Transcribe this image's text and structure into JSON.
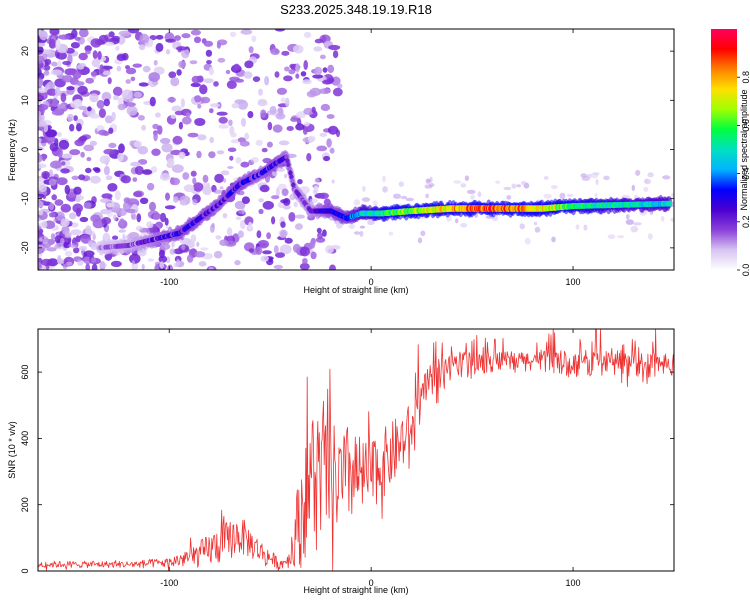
{
  "figure": {
    "title": "S233.2025.348.19.19.R18"
  },
  "chart_data": [
    {
      "type": "heatmap",
      "title": "S233.2025.348.19.19.R18",
      "xlabel": "Height of straight line (km)",
      "ylabel": "Frequency (Hz)",
      "xlim": [
        -165,
        150
      ],
      "ylim": [
        -24.5,
        24.5
      ],
      "x_ticks": [
        -100,
        0,
        100
      ],
      "x_tick_labels": [
        "-100",
        "0",
        "100"
      ],
      "y_ticks": [
        -20,
        -10,
        0,
        10,
        20
      ],
      "y_tick_labels": [
        "-20",
        "-10",
        "0",
        "10",
        "20"
      ],
      "colorbar": {
        "label": "Normalized spectral amplitude",
        "range": [
          0,
          1
        ],
        "ticks": [
          0.0,
          0.2,
          0.4,
          0.6,
          0.8
        ],
        "tick_labels": [
          "0.0",
          "0.2",
          "0.4",
          "0.6",
          "0.8"
        ],
        "colors": [
          "#ffffff",
          "#d7c4f2",
          "#8a3fd9",
          "#4b00d0",
          "#0000ff",
          "#00b4ff",
          "#00e0c0",
          "#00ff40",
          "#a0ff00",
          "#ffe000",
          "#ff8000",
          "#ff0000",
          "#ff0060"
        ]
      },
      "ridge": {
        "name": "dominant frequency track",
        "points": [
          {
            "x": -135,
            "y": -20,
            "a": 0.15
          },
          {
            "x": -120,
            "y": -19.5,
            "a": 0.18
          },
          {
            "x": -105,
            "y": -18,
            "a": 0.25
          },
          {
            "x": -95,
            "y": -17,
            "a": 0.3
          },
          {
            "x": -85,
            "y": -14,
            "a": 0.3
          },
          {
            "x": -75,
            "y": -11,
            "a": 0.28
          },
          {
            "x": -65,
            "y": -7,
            "a": 0.3
          },
          {
            "x": -55,
            "y": -5,
            "a": 0.28
          },
          {
            "x": -48,
            "y": -3,
            "a": 0.3
          },
          {
            "x": -42,
            "y": -1.5,
            "a": 0.25
          },
          {
            "x": -38,
            "y": -8,
            "a": 0.2
          },
          {
            "x": -30,
            "y": -12.5,
            "a": 0.22
          },
          {
            "x": -20,
            "y": -12.5,
            "a": 0.3
          },
          {
            "x": -12,
            "y": -14,
            "a": 0.35
          },
          {
            "x": -5,
            "y": -13,
            "a": 0.45
          },
          {
            "x": 5,
            "y": -13,
            "a": 0.55
          },
          {
            "x": 20,
            "y": -12.5,
            "a": 0.65
          },
          {
            "x": 40,
            "y": -12,
            "a": 0.78
          },
          {
            "x": 60,
            "y": -12,
            "a": 0.85
          },
          {
            "x": 85,
            "y": -12,
            "a": 0.75
          },
          {
            "x": 100,
            "y": -11.5,
            "a": 0.55
          },
          {
            "x": 120,
            "y": -11.3,
            "a": 0.5
          },
          {
            "x": 148,
            "y": -11,
            "a": 0.45
          }
        ]
      }
    },
    {
      "type": "line",
      "title": "",
      "xlabel": "Height of straight line (km)",
      "ylabel": "SNR (10 * v/v)",
      "xlim": [
        -165,
        150
      ],
      "ylim": [
        0,
        730
      ],
      "x_ticks": [
        -100,
        0,
        100
      ],
      "x_tick_labels": [
        "-100",
        "0",
        "100"
      ],
      "y_ticks": [
        0,
        200,
        400,
        600
      ],
      "y_tick_labels": [
        "0",
        "200",
        "400",
        "600"
      ],
      "series": [
        {
          "name": "SNR",
          "color": "#ee3333",
          "envelope": {
            "x": [
              -165,
              -120,
              -100,
              -85,
              -75,
              -65,
              -55,
              -45,
              -40,
              -35,
              -30,
              -25,
              -20,
              -15,
              -10,
              -5,
              0,
              10,
              20,
              25,
              30,
              40,
              60,
              80,
              100,
              120,
              150
            ],
            "y": [
              20,
              20,
              25,
              50,
              80,
              110,
              60,
              20,
              40,
              180,
              280,
              300,
              280,
              260,
              300,
              280,
              290,
              350,
              430,
              520,
              580,
              620,
              630,
              635,
              625,
              630,
              620
            ],
            "noise": [
              10,
              10,
              15,
              40,
              60,
              60,
              35,
              15,
              30,
              160,
              220,
              200,
              180,
              150,
              160,
              120,
              110,
              100,
              80,
              60,
              50,
              40,
              30,
              30,
              40,
              40,
              40
            ]
          }
        }
      ]
    }
  ]
}
